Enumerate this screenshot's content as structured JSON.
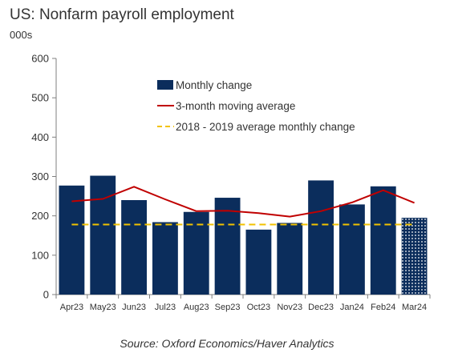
{
  "chart_data": {
    "type": "bar",
    "title": "US: Nonfarm payroll employment",
    "ylabel": "000s",
    "xlabel": "",
    "source": "Source: Oxford Economics/Haver Analytics",
    "categories": [
      "Apr23",
      "May23",
      "Jun23",
      "Jul23",
      "Aug23",
      "Sep23",
      "Oct23",
      "Nov23",
      "Dec23",
      "Jan24",
      "Feb24",
      "Mar24"
    ],
    "ylim": [
      0,
      600
    ],
    "yticks": [
      0,
      100,
      200,
      300,
      400,
      500,
      600
    ],
    "grid": false,
    "legend_position": "top-center",
    "series": [
      {
        "name": "Monthly change",
        "kind": "bar",
        "color": "#0b2d5c",
        "values": [
          277,
          302,
          240,
          184,
          210,
          246,
          165,
          182,
          290,
          229,
          275,
          195
        ],
        "patterned": [
          false,
          false,
          false,
          false,
          false,
          false,
          false,
          false,
          false,
          false,
          false,
          true
        ]
      },
      {
        "name": "3-month moving average",
        "kind": "line",
        "color": "#c00000",
        "values": [
          237,
          243,
          274,
          242,
          212,
          213,
          207,
          198,
          212,
          234,
          265,
          233
        ]
      },
      {
        "name": "2018 - 2019 average monthly change",
        "kind": "dashed-line",
        "color": "#f2c200",
        "values": [
          178,
          178,
          178,
          178,
          178,
          178,
          178,
          178,
          178,
          178,
          178,
          178
        ]
      }
    ]
  }
}
